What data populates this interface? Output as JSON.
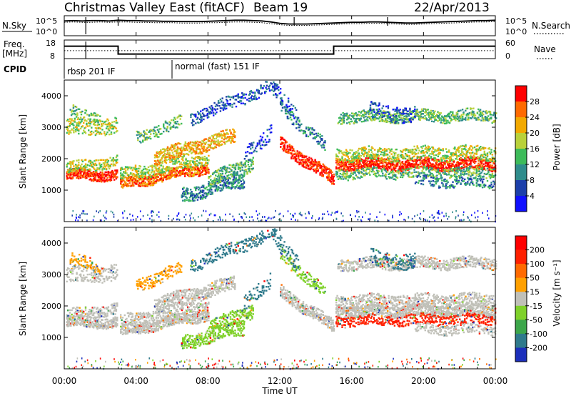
{
  "header": {
    "title": "Christmas Valley East (fitACF)",
    "beam": "Beam 19",
    "date": "22/Apr/2013"
  },
  "chart_data": [
    {
      "type": "line",
      "panel": "noise",
      "series": [
        {
          "name": "N.Sky",
          "style": "solid"
        },
        {
          "name": "N.Search",
          "style": "dotted"
        }
      ],
      "left_label": "N.Sky",
      "right_label": "N.Search",
      "left_ticks": [
        "10^5",
        "10^0"
      ],
      "right_ticks": [
        "10^5",
        "10^0"
      ],
      "x": [
        0,
        0.5,
        1,
        1.5,
        2,
        2.5,
        3,
        3.5,
        4,
        4.5,
        5,
        5.5,
        6,
        6.5,
        7,
        7.5,
        8,
        8.5,
        9,
        9.5,
        10,
        10.5,
        11,
        11.5,
        12,
        12.5,
        13,
        13.5,
        14,
        14.5,
        15,
        15.5,
        16,
        16.5,
        17,
        17.5,
        18,
        18.5,
        19,
        19.5,
        20,
        20.5,
        21,
        21.5,
        22,
        22.5,
        23,
        23.5,
        24
      ],
      "nsky": [
        3.9,
        4.0,
        3.9,
        4.0,
        4.0,
        3.9,
        4.1,
        4.0,
        4.0,
        3.9,
        3.9,
        3.8,
        3.8,
        3.7,
        3.7,
        3.7,
        3.8,
        3.9,
        4.0,
        4.1,
        4.1,
        4.0,
        3.9,
        3.6,
        3.2,
        3.0,
        3.0,
        3.0,
        3.1,
        3.2,
        3.3,
        3.4,
        3.5,
        3.5,
        3.6,
        3.6,
        3.5,
        3.4,
        3.3,
        3.3,
        3.4,
        3.5,
        3.6,
        3.7,
        3.8,
        3.9,
        4.0,
        4.0,
        4.1
      ],
      "nsearch": [
        3.5,
        3.6,
        3.5,
        3.5,
        3.6,
        3.5,
        3.6,
        3.6,
        3.5,
        3.5,
        3.4,
        3.4,
        3.4,
        3.3,
        3.3,
        3.3,
        3.4,
        3.4,
        3.5,
        3.6,
        3.6,
        3.5,
        3.4,
        3.1,
        2.8,
        2.6,
        2.6,
        2.6,
        2.7,
        2.8,
        2.9,
        3.0,
        3.1,
        3.1,
        3.2,
        3.2,
        3.1,
        3.0,
        2.9,
        2.9,
        3.0,
        3.1,
        3.2,
        3.3,
        3.4,
        3.5,
        3.6,
        3.6,
        3.7
      ],
      "spikes": [
        1.2,
        3.0,
        9.0,
        18.0,
        12.8
      ]
    },
    {
      "type": "line",
      "panel": "frequency",
      "left_label": "Freq. [MHz]",
      "right_label": "Nave",
      "left_ticks": [
        "18",
        "8"
      ],
      "right_ticks": [
        "60",
        "0"
      ],
      "freq_steps": [
        {
          "start": 0,
          "end": 3.0,
          "value": 15
        },
        {
          "start": 3.0,
          "end": 15.0,
          "value": 10
        },
        {
          "start": 15.0,
          "end": 24.0,
          "value": 15
        }
      ],
      "nave_level": 25
    },
    {
      "type": "table",
      "panel": "cpid",
      "label": "CPID",
      "entries": [
        {
          "start": 0,
          "text": "rbsp 201 IF"
        },
        {
          "start": 6.0,
          "text": "normal (fast) 151 IF"
        }
      ]
    },
    {
      "type": "heatmap",
      "panel": "power",
      "ylabel": "Slant Range [km]",
      "ylim": [
        0,
        4500
      ],
      "yticks": [
        1000,
        2000,
        3000,
        4000
      ],
      "colorbar_label": "Power [dB]",
      "colorbar_ticks": [
        "28",
        "24",
        "20",
        "16",
        "12",
        "8",
        "4"
      ],
      "colors": [
        "#1010ff",
        "#1c3faa",
        "#2f8c8c",
        "#3dbb5a",
        "#b9d13a",
        "#f2a900",
        "#ff6a00",
        "#ff0000"
      ]
    },
    {
      "type": "heatmap",
      "panel": "velocity",
      "ylabel": "Slant Range [km]",
      "ylim": [
        0,
        4500
      ],
      "yticks": [
        1000,
        2000,
        3000,
        4000
      ],
      "colorbar_label": "Velocity [m s⁻¹]",
      "colorbar_ticks": [
        "200",
        "100",
        "50",
        "15",
        "-15",
        "-50",
        "-100",
        "-200"
      ],
      "colors": [
        "#1c2fbb",
        "#2f7a8c",
        "#3ca64a",
        "#7fd12a",
        "#c0c0b8",
        "#ffa000",
        "#ff6a00",
        "#ff2000",
        "#ff0000"
      ]
    }
  ],
  "xaxis": {
    "label": "Time UT",
    "ticks": [
      "00:00",
      "04:00",
      "08:00",
      "12:00",
      "16:00",
      "20:00",
      "00:00"
    ],
    "range_hours": [
      0,
      24
    ]
  }
}
